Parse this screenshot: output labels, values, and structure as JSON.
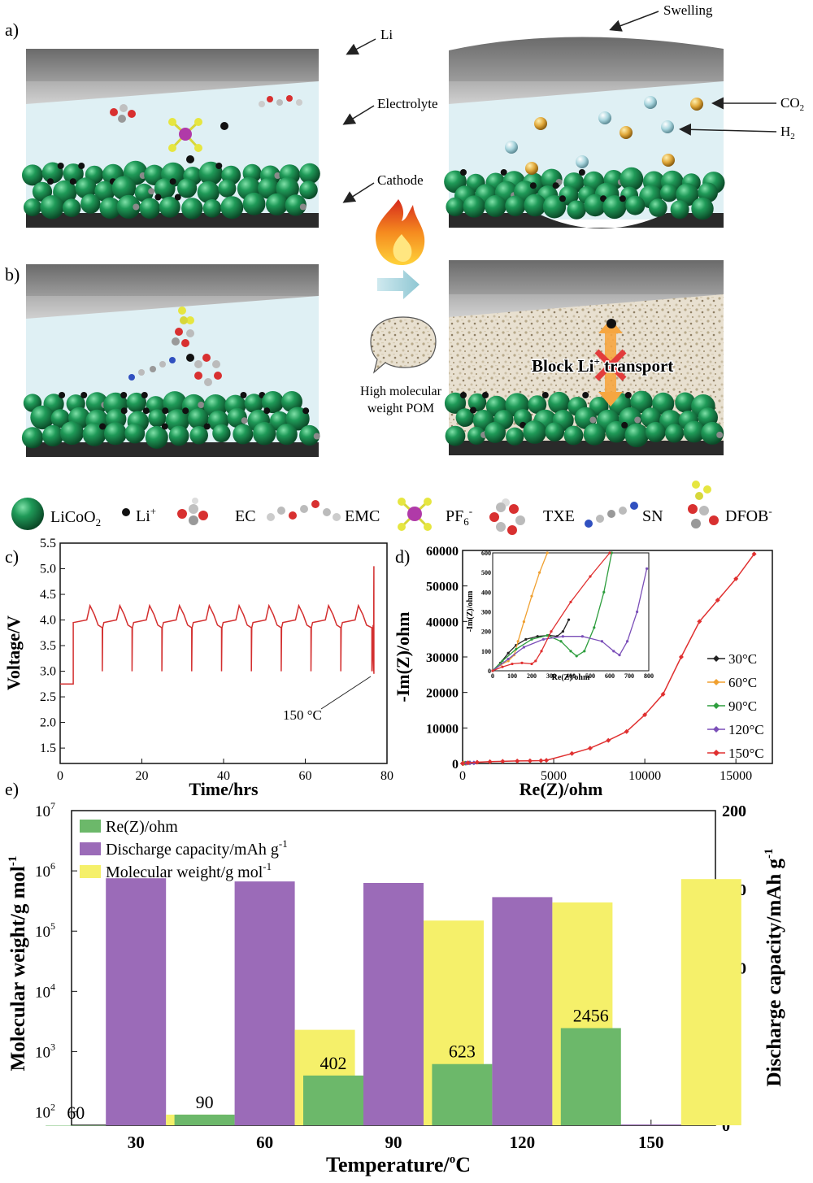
{
  "schematic": {
    "panel_a": {
      "letter": "a)",
      "label_li": "Li",
      "label_electrolyte": "Electrolyte",
      "label_cathode": "Cathode",
      "label_swelling": "Swelling",
      "label_co2": "CO",
      "label_co2_sub": "2",
      "label_h2": "H",
      "label_h2_sub": "2"
    },
    "panel_b": {
      "letter": "b)",
      "bubble_text_1": "High molecular",
      "bubble_text_2": "weight POM",
      "block_text_1": "Block Li",
      "block_text_sup": "+",
      "block_text_2": " transport"
    },
    "legend": [
      {
        "label": "LiCoO",
        "sub": "2",
        "icon": "green-sphere-icon"
      },
      {
        "label": "Li",
        "sup": "+",
        "icon": "black-dot-icon"
      },
      {
        "label": "EC",
        "icon": "ec-molecule-icon"
      },
      {
        "label": "EMC",
        "icon": "emc-molecule-icon"
      },
      {
        "label": "PF",
        "sub": "6",
        "sup": "-",
        "icon": "pf6-molecule-icon"
      },
      {
        "label": "TXE",
        "icon": "txe-molecule-icon"
      },
      {
        "label": "SN",
        "icon": "sn-molecule-icon"
      },
      {
        "label": "DFOB",
        "sup": "-",
        "icon": "dfob-molecule-icon"
      }
    ],
    "colors": {
      "cathode_green": "#1f8f54",
      "electrolyte": "#dff0f4",
      "lithium_gray": "#8a8a8a",
      "co2_gold": "#e0a83a",
      "h2_blue": "#a9d6de",
      "flame": "#f26522"
    }
  },
  "chart_data": [
    {
      "panel": "c)",
      "type": "line",
      "xlabel": "Time/hrs",
      "ylabel": "Voltage/V",
      "xlim": [
        0,
        80
      ],
      "ylim": [
        1.2,
        5.5
      ],
      "xticks": [
        0,
        20,
        40,
        60,
        80
      ],
      "yticks": [
        1.5,
        2.0,
        2.5,
        3.0,
        3.5,
        4.0,
        4.5,
        5.0,
        5.5
      ],
      "annotation": "150 °C",
      "series": [
        {
          "color": "#d32f2f",
          "description": "voltage cycling profile",
          "x": [
            0,
            3.2,
            3.2,
            6.5,
            7.3,
            8.4,
            9.3,
            10.3,
            10.3,
            10.4,
            10.7,
            13.8,
            14.6,
            15.7,
            16.6,
            17.6,
            17.6,
            17.7,
            18.0,
            21.1,
            21.9,
            23.0,
            23.9,
            24.9,
            24.9,
            25.0,
            25.3,
            28.4,
            29.2,
            30.3,
            31.2,
            32.2,
            32.2,
            32.3,
            32.6,
            35.7,
            36.5,
            37.6,
            38.5,
            39.5,
            39.5,
            39.6,
            39.9,
            43.0,
            43.8,
            44.9,
            45.8,
            46.8,
            46.8,
            46.9,
            47.2,
            50.3,
            51.1,
            52.2,
            53.1,
            54.1,
            54.1,
            54.2,
            54.5,
            57.6,
            58.4,
            59.5,
            60.4,
            61.4,
            61.4,
            61.5,
            61.8,
            64.9,
            65.7,
            66.8,
            67.7,
            68.7,
            68.7,
            68.8,
            69.1,
            72.2,
            73.0,
            74.1,
            75.0,
            76.3,
            76.3,
            76.6,
            76.7,
            76.8,
            76.8
          ],
          "y": [
            2.75,
            2.75,
            3.95,
            4.0,
            4.28,
            4.1,
            3.9,
            3.85,
            3.0,
            3.85,
            3.95,
            4.0,
            4.28,
            4.1,
            3.9,
            3.85,
            3.0,
            3.85,
            3.95,
            4.0,
            4.28,
            4.1,
            3.9,
            3.85,
            3.0,
            3.85,
            3.95,
            4.0,
            4.28,
            4.1,
            3.9,
            3.85,
            3.0,
            3.85,
            3.95,
            4.0,
            4.28,
            4.1,
            3.9,
            3.85,
            3.0,
            3.85,
            3.95,
            4.0,
            4.28,
            4.1,
            3.9,
            3.85,
            3.0,
            3.85,
            3.95,
            4.0,
            4.28,
            4.1,
            3.9,
            3.85,
            3.0,
            3.85,
            3.95,
            4.0,
            4.28,
            4.1,
            3.9,
            3.85,
            3.0,
            3.85,
            3.95,
            4.0,
            4.28,
            4.1,
            3.9,
            3.85,
            3.0,
            3.85,
            3.95,
            4.0,
            4.28,
            4.1,
            3.9,
            3.85,
            3.0,
            3.9,
            3.0,
            5.05,
            2.95
          ]
        }
      ]
    },
    {
      "panel": "d)",
      "type": "line",
      "xlabel": "Re(Z)/ohm",
      "ylabel": "-Im(Z)/ohm",
      "xlim": [
        0,
        17000
      ],
      "ylim": [
        0,
        60000
      ],
      "xticks": [
        0,
        5000,
        10000,
        15000
      ],
      "yticks": [
        0,
        10000,
        20000,
        30000,
        40000,
        50000,
        60000
      ],
      "legend_position": "right",
      "series": [
        {
          "name": "30°C",
          "color": "#222222",
          "x": [
            0,
            20,
            40,
            60
          ],
          "y": [
            0,
            20,
            40,
            60
          ]
        },
        {
          "name": "60°C",
          "color": "#f0a030",
          "x": [
            0,
            30,
            60,
            90
          ],
          "y": [
            0,
            25,
            50,
            80
          ]
        },
        {
          "name": "90°C",
          "color": "#2e9e3e",
          "x": [
            0,
            150,
            300,
            400
          ],
          "y": [
            0,
            80,
            150,
            170
          ]
        },
        {
          "name": "120°C",
          "color": "#7b4fb8",
          "x": [
            0,
            200,
            400,
            620
          ],
          "y": [
            0,
            100,
            170,
            175
          ]
        },
        {
          "name": "150°C",
          "color": "#e03030",
          "x": [
            0,
            300,
            800,
            1500,
            2200,
            3000,
            3700,
            4300,
            4600,
            6000,
            7000,
            8000,
            9000,
            10000,
            11000,
            12000,
            13000,
            14000,
            15000,
            16000
          ],
          "y": [
            0,
            200,
            350,
            500,
            600,
            700,
            750,
            800,
            900,
            2800,
            4300,
            6500,
            9000,
            13700,
            19500,
            30000,
            40000,
            46000,
            52000,
            59000
          ]
        }
      ],
      "inset": {
        "xlim": [
          0,
          800
        ],
        "ylim": [
          0,
          600
        ],
        "xticks": [
          0,
          100,
          200,
          300,
          400,
          500,
          600,
          700,
          800
        ],
        "yticks": [
          0,
          100,
          200,
          300,
          400,
          500,
          600
        ],
        "xlabel": "Re(Z)/ohm",
        "ylabel": "-Im(Z)/ohm",
        "series": [
          {
            "name": "30°C",
            "color": "#222222",
            "x": [
              0,
              40,
              80,
              120,
              170,
              230,
              290,
              330,
              360,
              390
            ],
            "y": [
              0,
              40,
              90,
              130,
              160,
              175,
              180,
              175,
              200,
              260
            ]
          },
          {
            "name": "60°C",
            "color": "#f0a030",
            "x": [
              0,
              40,
              80,
              110,
              130,
              160,
              200,
              240,
              280
            ],
            "y": [
              0,
              30,
              50,
              80,
              150,
              250,
              380,
              500,
              600
            ]
          },
          {
            "name": "90°C",
            "color": "#2e9e3e",
            "x": [
              0,
              50,
              120,
              200,
              280,
              350,
              400,
              430,
              470,
              520,
              570,
              610
            ],
            "y": [
              0,
              50,
              110,
              160,
              180,
              150,
              100,
              75,
              100,
              220,
              400,
              600
            ]
          },
          {
            "name": "120°C",
            "color": "#7b4fb8",
            "x": [
              0,
              80,
              160,
              260,
              360,
              460,
              560,
              620,
              650,
              690,
              740,
              790
            ],
            "y": [
              0,
              60,
              120,
              160,
              175,
              175,
              150,
              100,
              80,
              150,
              300,
              520
            ]
          },
          {
            "name": "150°C",
            "color": "#e03030",
            "x": [
              0,
              50,
              100,
              150,
              200,
              220,
              250,
              300,
              400,
              500,
              600
            ],
            "y": [
              0,
              20,
              35,
              40,
              35,
              50,
              100,
              200,
              350,
              480,
              600
            ]
          }
        ]
      }
    },
    {
      "panel": "e)",
      "type": "bar",
      "xlabel": "Temperature/",
      "xlabel_sup": "o",
      "xlabel_end": "C",
      "ylabel_left": "Molecular weight/g mol",
      "ylabel_left_sup": "-1",
      "ylabel_right": "Discharge capacity/mAh g",
      "ylabel_right_sup": "-1",
      "categories": [
        "30",
        "60",
        "90",
        "120",
        "150"
      ],
      "left_scale": "log",
      "left_ylim": [
        60,
        10000000
      ],
      "left_ticks": [
        "10",
        "10",
        "10",
        "10",
        "10",
        "10"
      ],
      "left_tick_exps": [
        "2",
        "3",
        "4",
        "5",
        "6",
        "7"
      ],
      "right_ylim": [
        0,
        200
      ],
      "right_ticks": [
        "0",
        "50",
        "100",
        "150",
        "200"
      ],
      "series": [
        {
          "name": "Re(Z)/ohm",
          "color": "#6cb86a",
          "axis": "left",
          "values": [
            60,
            90,
            402,
            623,
            2456
          ],
          "labels": [
            "60",
            "90",
            "402",
            "623",
            "2456"
          ]
        },
        {
          "name": "Discharge capacity/mAh g",
          "name_sup": "-1",
          "color": "#9b6bb8",
          "axis": "right",
          "values": [
            157,
            155,
            154,
            145,
            0.5
          ]
        },
        {
          "name": "Molecular weight/g mol",
          "name_sup": "-1",
          "color": "#f5f06a",
          "axis": "left",
          "values": [
            90,
            2300,
            150000,
            300000,
            730000
          ]
        }
      ]
    }
  ]
}
